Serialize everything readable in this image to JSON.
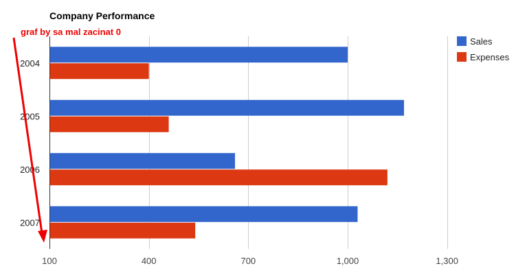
{
  "chart_data": {
    "type": "bar",
    "orientation": "horizontal",
    "title": "Company Performance",
    "categories": [
      "2004",
      "2005",
      "2006",
      "2007"
    ],
    "series": [
      {
        "name": "Sales",
        "color": "#3366cc",
        "values": [
          1000,
          1170,
          660,
          1030
        ]
      },
      {
        "name": "Expenses",
        "color": "#dc3912",
        "values": [
          400,
          460,
          1120,
          540
        ]
      }
    ],
    "xlim": [
      100,
      1450
    ],
    "xticks": [
      100,
      400,
      700,
      1000,
      1300
    ],
    "xtick_labels": [
      "100",
      "400",
      "700",
      "1,000",
      "1,300"
    ],
    "grid": true,
    "legend_position": "right",
    "annotation": {
      "text": "graf by sa mal zacinat 0",
      "color": "#ee0000"
    }
  }
}
